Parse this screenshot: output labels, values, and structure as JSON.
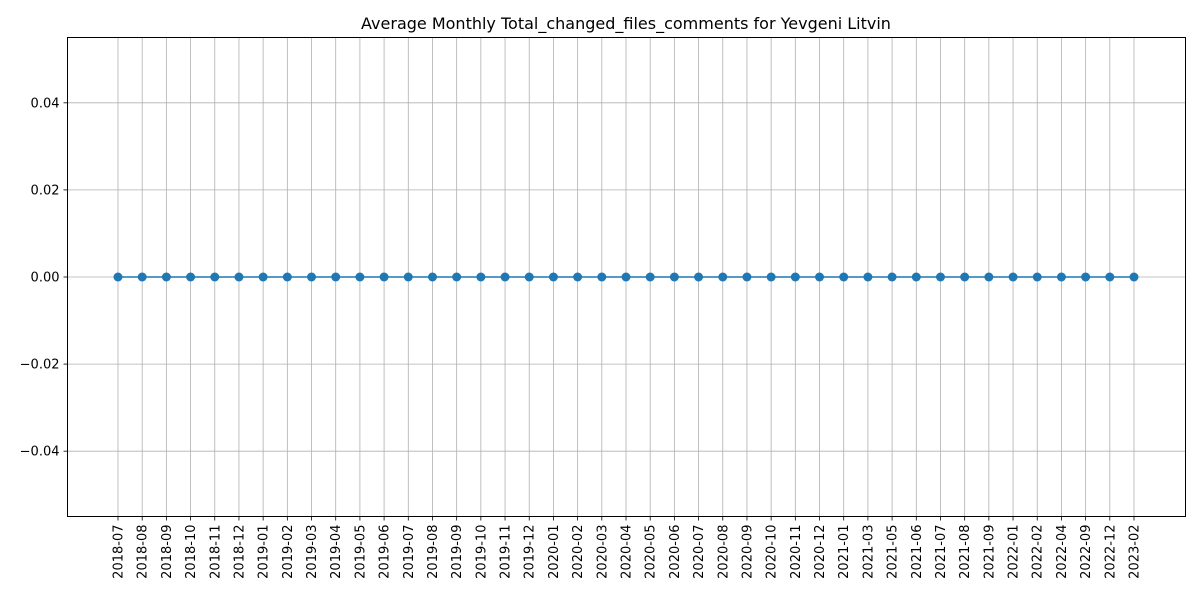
{
  "chart_data": {
    "type": "line",
    "title": "Average Monthly Total_changed_files_comments for Yevgeni Litvin",
    "xlabel": "",
    "ylabel": "",
    "categories": [
      "2018-07",
      "2018-08",
      "2018-09",
      "2018-10",
      "2018-11",
      "2018-12",
      "2019-01",
      "2019-02",
      "2019-03",
      "2019-04",
      "2019-05",
      "2019-06",
      "2019-07",
      "2019-08",
      "2019-09",
      "2019-10",
      "2019-11",
      "2019-12",
      "2020-01",
      "2020-02",
      "2020-03",
      "2020-04",
      "2020-05",
      "2020-06",
      "2020-07",
      "2020-08",
      "2020-09",
      "2020-10",
      "2020-11",
      "2020-12",
      "2021-01",
      "2021-03",
      "2021-05",
      "2021-06",
      "2021-07",
      "2021-08",
      "2021-09",
      "2022-01",
      "2022-02",
      "2022-04",
      "2022-09",
      "2022-12",
      "2023-02"
    ],
    "values": [
      0,
      0,
      0,
      0,
      0,
      0,
      0,
      0,
      0,
      0,
      0,
      0,
      0,
      0,
      0,
      0,
      0,
      0,
      0,
      0,
      0,
      0,
      0,
      0,
      0,
      0,
      0,
      0,
      0,
      0,
      0,
      0,
      0,
      0,
      0,
      0,
      0,
      0,
      0,
      0,
      0,
      0,
      0
    ],
    "ylim": [
      -0.055,
      0.055
    ],
    "yticks": [
      -0.04,
      -0.02,
      0.0,
      0.02,
      0.04
    ],
    "ytick_labels": [
      "−0.04",
      "−0.02",
      "0.00",
      "0.02",
      "0.04"
    ],
    "grid": true,
    "legend": false,
    "markers": true,
    "colors": {
      "line": "#1f77b4",
      "grid": "#b0b0b0",
      "axes": "#000000"
    }
  }
}
